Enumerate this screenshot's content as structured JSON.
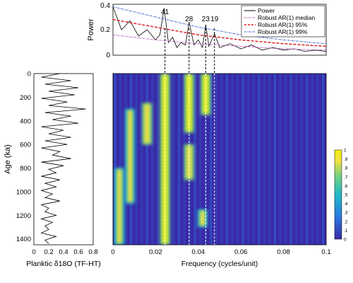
{
  "chart_data": [
    {
      "type": "line",
      "ylabel": "Power",
      "xlim": [
        0,
        0.1
      ],
      "ylim": [
        0,
        0.4
      ],
      "yticks": [
        "0",
        "0.2",
        "0.4"
      ],
      "peak_labels": [
        {
          "label": "41",
          "x": 0.0244
        },
        {
          "label": "28",
          "x": 0.0357
        },
        {
          "label": "23",
          "x": 0.0435
        },
        {
          "label": "19",
          "x": 0.0476
        }
      ],
      "legend": [
        "Power",
        "Robust AR(1) median",
        "Robust AR(1) 95%",
        "Robust AR(1) 99%"
      ],
      "legend_position": "top-right",
      "series": [
        {
          "name": "Power",
          "color": "#000000",
          "x": [
            0,
            0.004,
            0.008,
            0.012,
            0.016,
            0.02,
            0.022,
            0.024,
            0.026,
            0.028,
            0.03,
            0.032,
            0.034,
            0.0357,
            0.038,
            0.04,
            0.042,
            0.0435,
            0.045,
            0.0476,
            0.05,
            0.055,
            0.06,
            0.065,
            0.07,
            0.075,
            0.08,
            0.085,
            0.09,
            0.095,
            0.1
          ],
          "y": [
            0.38,
            0.2,
            0.27,
            0.15,
            0.2,
            0.12,
            0.16,
            0.37,
            0.1,
            0.14,
            0.06,
            0.1,
            0.08,
            0.26,
            0.08,
            0.12,
            0.06,
            0.24,
            0.07,
            0.17,
            0.06,
            0.09,
            0.05,
            0.08,
            0.04,
            0.06,
            0.04,
            0.05,
            0.03,
            0.04,
            0.03
          ]
        },
        {
          "name": "Robust AR(1) median",
          "color": "#c060c0",
          "x": [
            0,
            0.02,
            0.04,
            0.06,
            0.08,
            0.1
          ],
          "y": [
            0.16,
            0.12,
            0.09,
            0.07,
            0.05,
            0.04
          ]
        },
        {
          "name": "Robust AR(1) 95%",
          "color": "#e02020",
          "x": [
            0,
            0.02,
            0.04,
            0.06,
            0.08,
            0.1
          ],
          "y": [
            0.28,
            0.22,
            0.16,
            0.12,
            0.09,
            0.07
          ]
        },
        {
          "name": "Robust AR(1) 99%",
          "color": "#4060d0",
          "x": [
            0,
            0.02,
            0.04,
            0.06,
            0.08,
            0.1
          ],
          "y": [
            0.38,
            0.3,
            0.22,
            0.16,
            0.12,
            0.09
          ]
        }
      ]
    },
    {
      "type": "line",
      "xlabel": "Planktic δ18O (TF-HT)",
      "ylabel": "Age (ka)",
      "xlim": [
        0,
        0.8
      ],
      "ylim": [
        1450,
        0
      ],
      "xticks": [
        "0",
        "0.2",
        "0.4",
        "0.6",
        "0.8"
      ],
      "yticks": [
        "0",
        "200",
        "400",
        "600",
        "800",
        "1000",
        "1200",
        "1400"
      ],
      "series": [
        {
          "name": "Planktic δ18O",
          "color": "#000000",
          "age": [
            0,
            30,
            60,
            90,
            120,
            150,
            180,
            210,
            240,
            270,
            300,
            330,
            360,
            390,
            420,
            450,
            480,
            510,
            540,
            570,
            600,
            630,
            660,
            690,
            720,
            750,
            780,
            810,
            840,
            870,
            900,
            930,
            960,
            990,
            1020,
            1050,
            1080,
            1110,
            1140,
            1170,
            1200,
            1230,
            1260,
            1290,
            1320,
            1350,
            1380,
            1410,
            1440
          ],
          "value": [
            0.35,
            0.1,
            0.5,
            0.15,
            0.6,
            0.2,
            0.55,
            0.1,
            0.45,
            0.2,
            0.7,
            0.15,
            0.5,
            0.25,
            0.6,
            0.1,
            0.4,
            0.2,
            0.5,
            0.15,
            0.45,
            0.1,
            0.35,
            0.25,
            0.5,
            0.1,
            0.4,
            0.2,
            0.3,
            0.1,
            0.35,
            0.15,
            0.3,
            0.1,
            0.25,
            0.15,
            0.35,
            0.1,
            0.2,
            0.15,
            0.3,
            0.1,
            0.25,
            0.15,
            0.2,
            0.1,
            0.3,
            0.15,
            0.2
          ]
        }
      ]
    },
    {
      "type": "heatmap",
      "xlabel": "Frequency (cycles/unit)",
      "xlim": [
        0,
        0.1
      ],
      "ylim": [
        1450,
        0
      ],
      "xticks": [
        "0",
        "0.02",
        "0.04",
        "0.06",
        "0.08",
        "0.1"
      ],
      "colorbar": {
        "min": 0,
        "max": 1,
        "ticks": [
          "0",
          ".1",
          ".2",
          ".3",
          ".4",
          ".5",
          ".6",
          ".7",
          ".8",
          ".9",
          "1"
        ],
        "colors": [
          "#3a2aa8",
          "#2a78e0",
          "#20b8c8",
          "#70d080",
          "#f0e040",
          "#f5f010"
        ]
      },
      "bands": [
        {
          "x_center": 0.0244,
          "age_range": [
            0,
            1450
          ],
          "intensity": 0.9
        },
        {
          "x_center": 0.0357,
          "age_range": [
            0,
            500
          ],
          "intensity": 0.95
        },
        {
          "x_center": 0.0357,
          "age_range": [
            600,
            900
          ],
          "intensity": 0.85
        },
        {
          "x_center": 0.0435,
          "age_range": [
            0,
            350
          ],
          "intensity": 0.9
        },
        {
          "x_center": 0.042,
          "age_range": [
            1150,
            1300
          ],
          "intensity": 0.75
        },
        {
          "x_center": 0.008,
          "age_range": [
            300,
            1100
          ],
          "intensity": 0.8
        },
        {
          "x_center": 0.016,
          "age_range": [
            250,
            600
          ],
          "intensity": 0.85
        },
        {
          "x_center": 0.003,
          "age_range": [
            800,
            1450
          ],
          "intensity": 0.7
        }
      ],
      "marked_frequencies": [
        0.0244,
        0.0357,
        0.0435,
        0.0476
      ]
    }
  ]
}
